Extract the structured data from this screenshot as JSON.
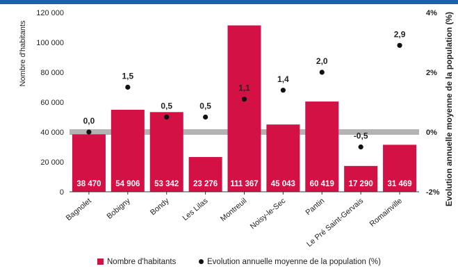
{
  "chart_data": {
    "type": "bar",
    "categories": [
      "Bagnolet",
      "Bobigny",
      "Bondy",
      "Les Lilas",
      "Montreuil",
      "Noisy-le-Sec",
      "Pantin",
      "Le Pré Saint-Gervais",
      "Romainville"
    ],
    "series": [
      {
        "name": "Nombre d'habitants",
        "axis": "left",
        "type": "bar",
        "color": "#d31145",
        "values": [
          38470,
          54906,
          53342,
          23276,
          111367,
          45043,
          60419,
          17290,
          31469
        ],
        "labels": [
          "38 470",
          "54 906",
          "53 342",
          "23 276",
          "111 367",
          "45 043",
          "60 419",
          "17 290",
          "31 469"
        ]
      },
      {
        "name": "Evolution annuelle moyenne de la population (%)",
        "axis": "right",
        "type": "scatter",
        "color": "#111111",
        "values": [
          0.0,
          1.5,
          0.5,
          0.5,
          1.1,
          1.4,
          2.0,
          -0.5,
          2.9
        ],
        "labels": [
          "0,0",
          "1,5",
          "0,5",
          "0,5",
          "1,1",
          "1,4",
          "2,0",
          "-0,5",
          "2,9"
        ]
      }
    ],
    "ylabel": "Nombre d'habitants",
    "y2label": "Evolution annuelle moyenne de la population (%)",
    "ylim": [
      0,
      120000
    ],
    "y2lim": [
      -2,
      4
    ],
    "yticks": [
      "0",
      "20 000",
      "40 000",
      "60 000",
      "80 000",
      "100 000",
      "120 000"
    ],
    "y2ticks": [
      "-2%",
      "0%",
      "2%",
      "4%"
    ],
    "grid": false,
    "legend_position": "bottom"
  },
  "legend": {
    "bar_label": "Nombre d'habitants",
    "dot_label": "Evolution annuelle moyenne de la population (%)"
  }
}
